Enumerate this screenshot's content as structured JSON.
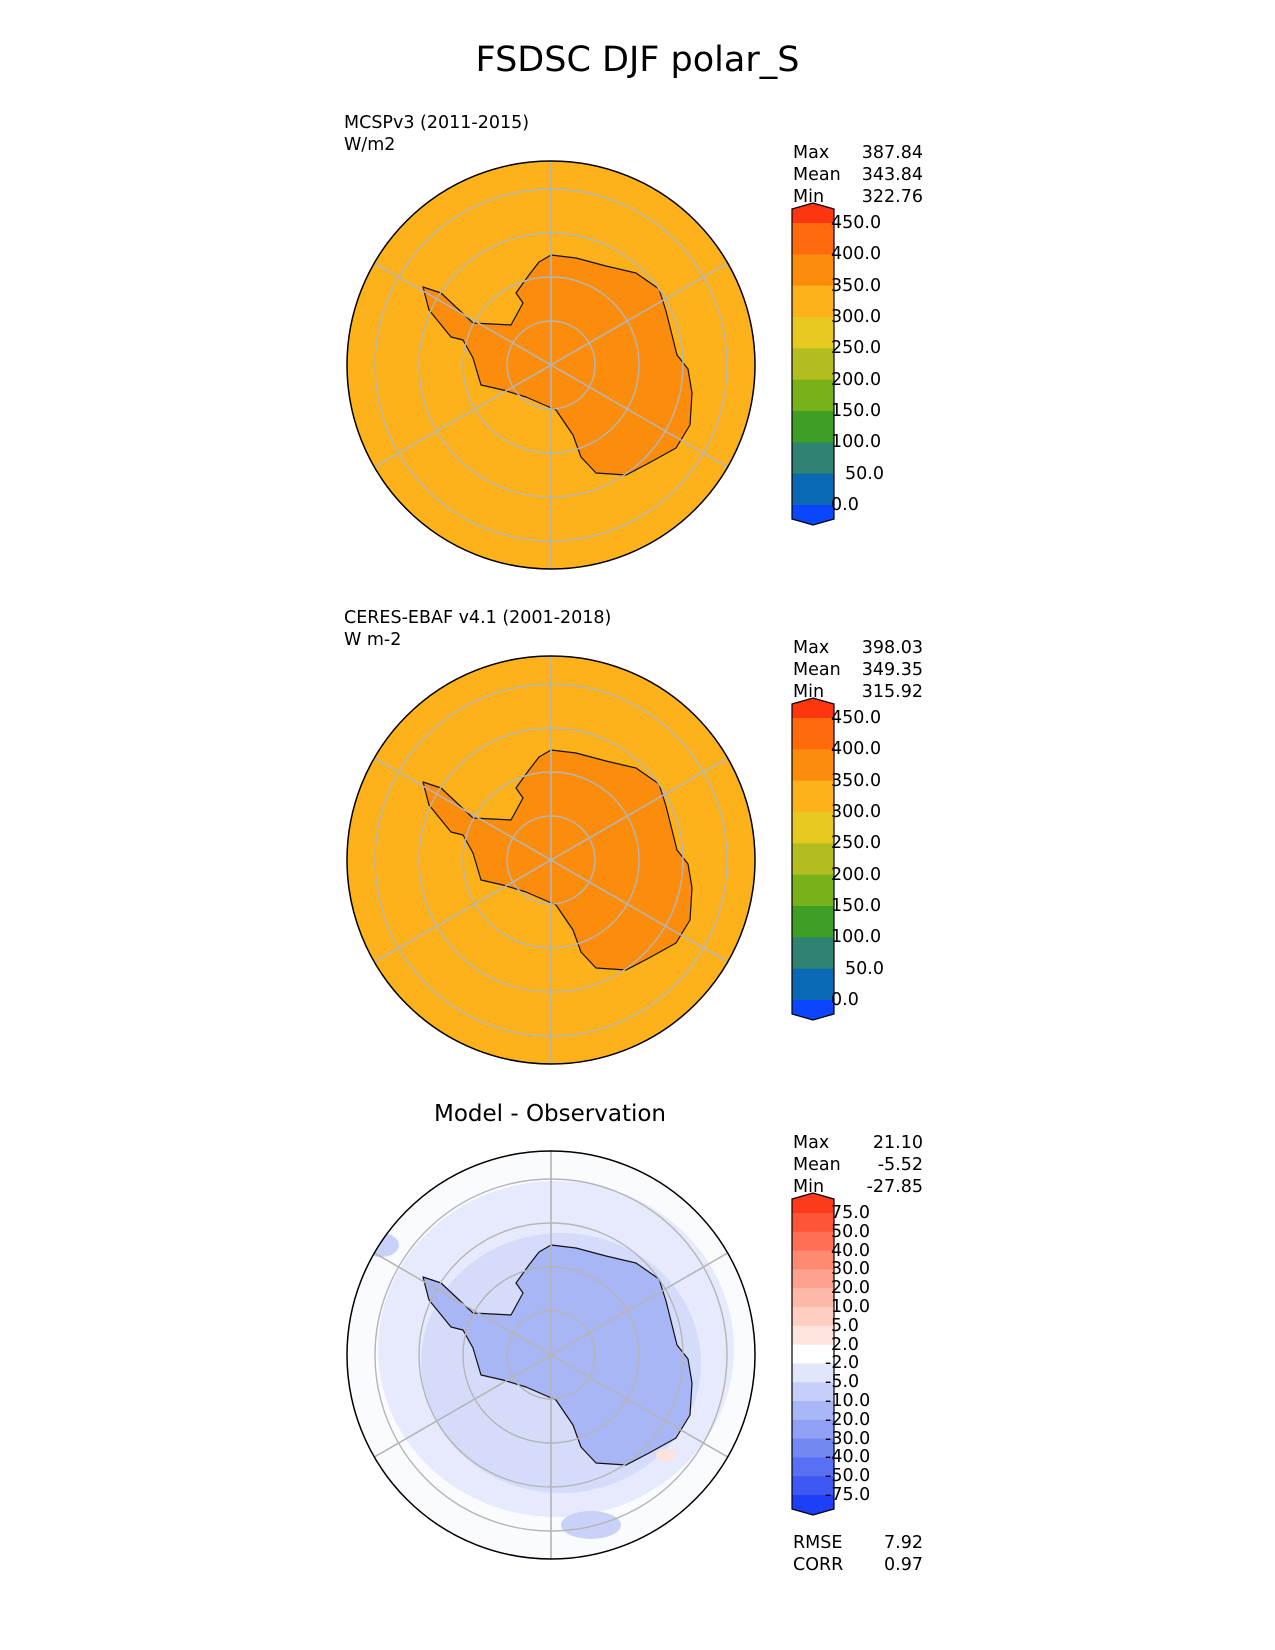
{
  "title": "FSDSC DJF polar_S",
  "panels": [
    {
      "type": "field",
      "label_line1": "MCSPv3 (2011-2015)",
      "label_line2": "W/m2",
      "stats": [
        {
          "label": "Max",
          "value": "387.84"
        },
        {
          "label": "Mean",
          "value": "343.84"
        },
        {
          "label": "Min",
          "value": "322.76"
        }
      ],
      "ocean_color": "#fdb21c",
      "land_color": "#fb8c0c",
      "colorbar": {
        "ticks": [
          "450.0",
          "400.0",
          "350.0",
          "300.0",
          "250.0",
          "200.0",
          "150.0",
          "100.0",
          "50.0",
          "0.0"
        ],
        "colors": [
          "#fe3610",
          "#fe6a0c",
          "#fb8c0c",
          "#fdb21c",
          "#e7c820",
          "#b3bd1f",
          "#77b21a",
          "#3f9e26",
          "#2f8370",
          "#0a68b4",
          "#0b45fe"
        ]
      }
    },
    {
      "type": "field",
      "label_line1": "CERES-EBAF v4.1 (2001-2018)",
      "label_line2": "W m-2",
      "stats": [
        {
          "label": "Max",
          "value": "398.03"
        },
        {
          "label": "Mean",
          "value": "349.35"
        },
        {
          "label": "Min",
          "value": "315.92"
        }
      ],
      "ocean_color": "#fdb21c",
      "land_color": "#fb8c0c",
      "colorbar": {
        "ticks": [
          "450.0",
          "400.0",
          "350.0",
          "300.0",
          "250.0",
          "200.0",
          "150.0",
          "100.0",
          "50.0",
          "0.0"
        ],
        "colors": [
          "#fe3610",
          "#fe6a0c",
          "#fb8c0c",
          "#fdb21c",
          "#e7c820",
          "#b3bd1f",
          "#77b21a",
          "#3f9e26",
          "#2f8370",
          "#0a68b4",
          "#0b45fe"
        ]
      }
    },
    {
      "type": "diff",
      "center_title": "Model - Observation",
      "stats": [
        {
          "label": "Max",
          "value": "21.10"
        },
        {
          "label": "Mean",
          "value": "-5.52"
        },
        {
          "label": "Min",
          "value": "-27.85"
        }
      ],
      "footer_stats": [
        {
          "label": "RMSE",
          "value": "7.92"
        },
        {
          "label": "CORR",
          "value": "0.97"
        }
      ],
      "ocean_color": "#dfe5fb",
      "land_color": "#a8b6f6",
      "colorbar": {
        "ticks": [
          "75.0",
          "50.0",
          "40.0",
          "30.0",
          "20.0",
          "10.0",
          "5.0",
          "2.0",
          "-2.0",
          "-5.0",
          "-10.0",
          "-20.0",
          "-30.0",
          "-40.0",
          "-50.0",
          "-75.0"
        ],
        "colors": [
          "#fe3a1d",
          "#fe5538",
          "#fe6f55",
          "#fe8a72",
          "#fea28f",
          "#feb8a9",
          "#fecec3",
          "#fee4dd",
          "#ffffff",
          "#e1e6fb",
          "#c6cffa",
          "#aab7f7",
          "#8fa0f5",
          "#7488f4",
          "#5a70f4",
          "#3e58f6",
          "#1f3ef8"
        ]
      }
    }
  ]
}
